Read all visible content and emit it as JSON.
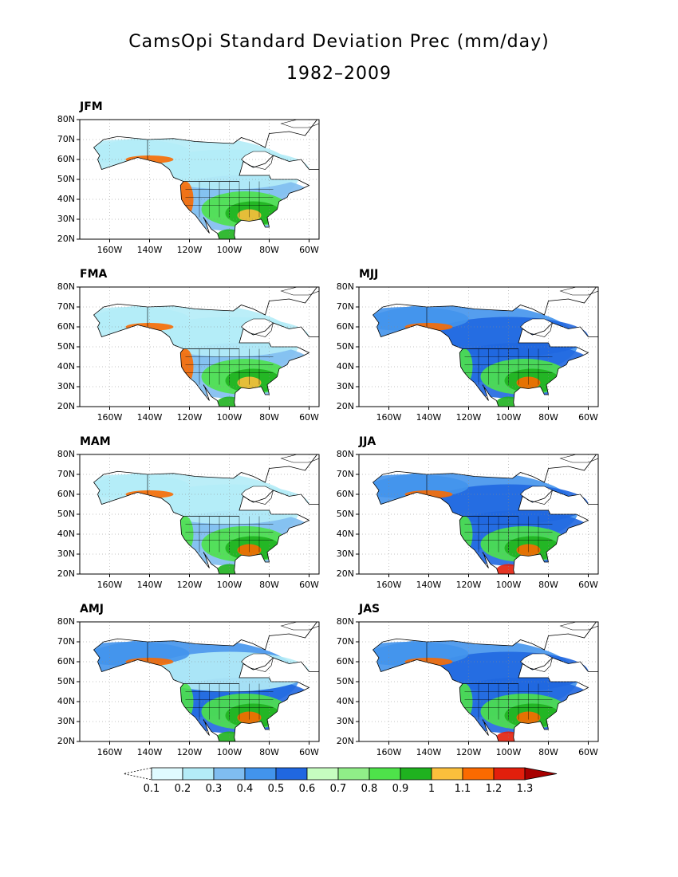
{
  "title": "CamsOpi Standard Deviation Prec (mm/day)",
  "period": "1982–2009",
  "y_ticks": [
    "80N",
    "70N",
    "60N",
    "50N",
    "40N",
    "30N",
    "20N"
  ],
  "x_ticks": [
    "160W",
    "140W",
    "120W",
    "100W",
    "80W",
    "60W"
  ],
  "panels": [
    {
      "label": "JFM",
      "intensity": 0.55
    },
    {
      "label": "FMA",
      "intensity": 0.62
    },
    {
      "label": "MJJ",
      "intensity": 1.0
    },
    {
      "label": "MAM",
      "intensity": 0.78
    },
    {
      "label": "JJA",
      "intensity": 1.05
    },
    {
      "label": "AMJ",
      "intensity": 0.92
    },
    {
      "label": "JAS",
      "intensity": 1.1
    }
  ],
  "colorbar": {
    "labels": [
      "0.1",
      "0.2",
      "0.3",
      "0.4",
      "0.5",
      "0.6",
      "0.7",
      "0.8",
      "0.9",
      "1",
      "1.1",
      "1.2",
      "1.3"
    ],
    "colors": [
      "#ffffff",
      "#e0fbff",
      "#b4ecf7",
      "#7fbdf0",
      "#4294ec",
      "#2067e0",
      "#c6fdc0",
      "#90ee88",
      "#4ee24a",
      "#1fb21f",
      "#fbbf3c",
      "#fb6a00",
      "#e21f0c",
      "#a80000"
    ]
  }
}
